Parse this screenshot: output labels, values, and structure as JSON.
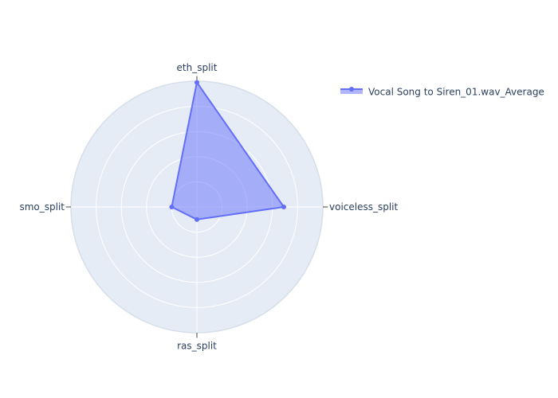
{
  "chart_data": {
    "type": "radar",
    "axes": [
      "eth_split",
      "voiceless_split",
      "ras_split",
      "smo_split"
    ],
    "series": [
      {
        "name": "Vocal Song to Siren_01.wav_Average",
        "values": [
          0.99,
          0.69,
          0.1,
          0.2
        ]
      }
    ],
    "r_range": [
      0,
      1
    ],
    "grid": true,
    "legend_position": "top-right",
    "colors": {
      "series": "#636efa",
      "polar_bg": "#e5ecf6",
      "grid": "#ffffff",
      "text": "#2a3f5f"
    }
  }
}
